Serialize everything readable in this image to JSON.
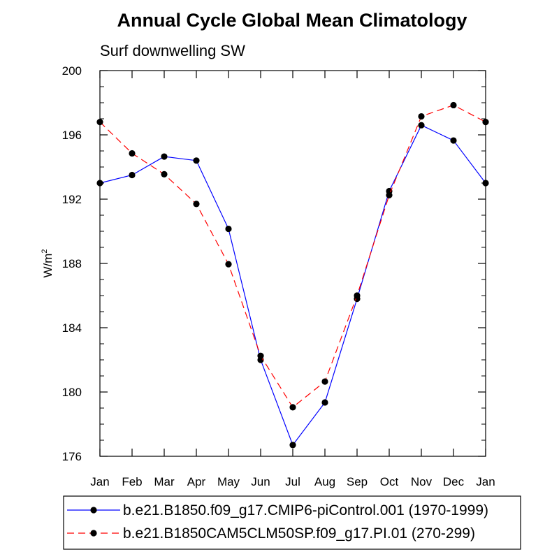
{
  "chart_data": {
    "type": "line",
    "title": "Annual Cycle Global Mean Climatology",
    "subtitle": "Surf downwelling SW",
    "ylabel": "W/m",
    "ylabel_sup": "2",
    "xlabel": "",
    "categories": [
      "Jan",
      "Feb",
      "Mar",
      "Apr",
      "May",
      "Jun",
      "Jul",
      "Aug",
      "Sep",
      "Oct",
      "Nov",
      "Dec",
      "Jan"
    ],
    "ylim": [
      176,
      200
    ],
    "yticks": [
      176,
      180,
      184,
      188,
      192,
      196,
      200
    ],
    "grid": false,
    "legend_position": "bottom",
    "series": [
      {
        "name": "b.e21.B1850.f09_g17.CMIP6-piControl.001 (1970-1999)",
        "color": "#0000ff",
        "dash": "solid",
        "values": [
          193.0,
          193.5,
          194.65,
          194.4,
          190.15,
          182.0,
          176.7,
          179.35,
          185.8,
          192.5,
          196.6,
          195.65,
          193.0
        ]
      },
      {
        "name": "b.e21.B1850CAM5CLM50SP.f09_g17.PI.01 (270-299)",
        "color": "#ff0000",
        "dash": "dashed",
        "values": [
          196.8,
          194.85,
          193.55,
          191.7,
          187.95,
          182.25,
          179.05,
          180.65,
          186.0,
          192.25,
          197.15,
          197.85,
          196.8
        ]
      }
    ]
  }
}
